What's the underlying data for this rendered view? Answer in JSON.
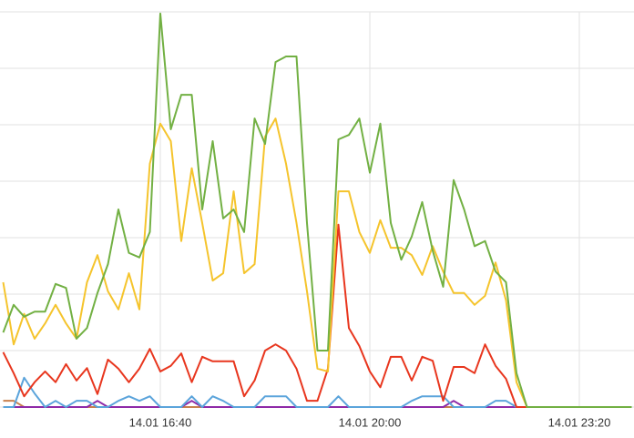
{
  "chart_data": {
    "type": "line",
    "categories": [
      null,
      null,
      null,
      null,
      null,
      null,
      null,
      null,
      null,
      null,
      null,
      null,
      null,
      null,
      null,
      "14.01 16:40",
      null,
      null,
      null,
      null,
      null,
      null,
      null,
      null,
      null,
      null,
      null,
      null,
      null,
      null,
      null,
      null,
      null,
      null,
      null,
      "14.01 20:00",
      null,
      null,
      null,
      null,
      null,
      null,
      null,
      null,
      null,
      null,
      null,
      null,
      null,
      null,
      null,
      null,
      null,
      null,
      null,
      "14.01 23:20",
      null,
      null,
      null,
      null,
      null
    ],
    "ylim": [
      0,
      7
    ],
    "yticks": [
      0,
      1,
      2,
      3,
      4,
      5,
      6,
      7
    ],
    "grid": true,
    "series": [
      {
        "color": "#c8804e",
        "values": [
          0.11,
          0.11,
          0,
          0,
          0,
          0,
          0,
          0,
          0,
          0,
          0,
          0,
          0,
          0,
          0,
          0,
          0,
          0,
          0,
          0,
          0,
          0,
          0,
          0,
          0,
          0,
          0,
          0,
          0,
          0,
          0,
          0,
          0,
          0,
          0,
          0,
          0,
          0,
          0,
          0,
          0,
          0,
          0,
          0,
          0,
          0,
          0,
          0,
          0,
          0,
          0,
          0,
          0,
          0,
          0,
          0,
          0,
          0,
          0,
          0,
          0
        ]
      },
      {
        "color": "#8e2aa8",
        "values": [
          0,
          0,
          0,
          0,
          0,
          0,
          0,
          0,
          0,
          0.11,
          0,
          0,
          0,
          0,
          0,
          0,
          0,
          0,
          0.11,
          0,
          0,
          0,
          0,
          0,
          0,
          0,
          0,
          0,
          0,
          0,
          0,
          0,
          0,
          0,
          0,
          0,
          0,
          0,
          0,
          0,
          0,
          0,
          0,
          0.11,
          0,
          0,
          0,
          0,
          0,
          0,
          0,
          0,
          0,
          0,
          0,
          0,
          0,
          0,
          0,
          0,
          0
        ]
      },
      {
        "color": "#5ba4db",
        "values": [
          0,
          0,
          0.52,
          0.24,
          0,
          0.11,
          0,
          0.11,
          0.11,
          0,
          0,
          0.11,
          0.19,
          0.11,
          0.19,
          0,
          0,
          0,
          0.19,
          0,
          0.19,
          0.11,
          0,
          0,
          0,
          0.19,
          0.19,
          0.19,
          0,
          0,
          0,
          0,
          0.19,
          0,
          0,
          0,
          0,
          0,
          0,
          0.11,
          0.19,
          0.19,
          0.19,
          0,
          0,
          0,
          0,
          0.11,
          0.11,
          0,
          0,
          0,
          0,
          0,
          0,
          0,
          0,
          0,
          0,
          0,
          0
        ]
      },
      {
        "color": "#e8361e",
        "values": [
          0.97,
          0.6,
          0.19,
          0.44,
          0.63,
          0.44,
          0.76,
          0.47,
          0.69,
          0.23,
          0.84,
          0.68,
          0.44,
          0.68,
          1.03,
          0.63,
          0.73,
          0.95,
          0.44,
          0.89,
          0.81,
          0.81,
          0.81,
          0.19,
          0.47,
          1.0,
          1.11,
          1.0,
          0.68,
          0.11,
          0.11,
          0.68,
          3.23,
          1.4,
          1.08,
          0.63,
          0.35,
          0.89,
          0.89,
          0.47,
          0.89,
          0.82,
          0.11,
          0.71,
          0.71,
          0.6,
          1.11,
          0.73,
          0.5,
          0,
          0,
          0,
          0,
          0,
          0,
          0,
          0,
          0,
          0,
          0,
          0
        ]
      },
      {
        "color": "#f5c42c",
        "values": [
          2.21,
          1.11,
          1.65,
          1.21,
          1.48,
          1.81,
          1.48,
          1.21,
          2.21,
          2.69,
          2.05,
          1.73,
          2.37,
          1.73,
          4.31,
          5.02,
          4.71,
          2.94,
          4.23,
          3.26,
          2.24,
          2.37,
          3.82,
          2.37,
          2.53,
          4.79,
          5.11,
          4.31,
          3.26,
          2.05,
          0.68,
          0.63,
          3.82,
          3.82,
          3.1,
          2.73,
          3.31,
          2.82,
          2.82,
          2.69,
          2.34,
          2.85,
          2.4,
          2.02,
          2.02,
          1.81,
          1.97,
          2.56,
          1.89,
          0.44,
          0,
          0,
          0,
          0,
          0,
          0,
          0,
          0,
          0,
          0,
          0
        ]
      },
      {
        "color": "#72b043",
        "values": [
          1.32,
          1.81,
          1.6,
          1.69,
          1.69,
          2.18,
          2.11,
          1.21,
          1.4,
          2.02,
          2.53,
          3.5,
          2.73,
          2.65,
          3.1,
          6.97,
          4.92,
          5.53,
          5.53,
          3.5,
          4.71,
          3.34,
          3.5,
          3.1,
          5.11,
          4.66,
          6.11,
          6.21,
          6.21,
          3.26,
          1.0,
          1.0,
          4.74,
          4.82,
          5.11,
          4.15,
          5.02,
          3.26,
          2.61,
          3.02,
          3.63,
          2.77,
          2.13,
          4.02,
          3.5,
          2.85,
          2.94,
          2.4,
          2.21,
          0.6,
          0,
          0,
          0,
          0,
          0,
          0,
          0,
          0,
          0,
          0,
          0
        ]
      }
    ]
  }
}
